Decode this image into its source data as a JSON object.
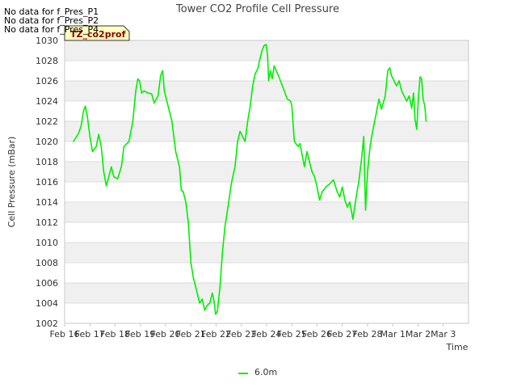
{
  "no_data_messages": [
    "No data for f_Pres_P1",
    "No data for f_Pres_P2",
    "No data for f_Pres_P4"
  ],
  "station_badge": "TZ_co2prof",
  "colors": {
    "series": "#00ee00",
    "band": "#f0f0f0",
    "grid": "#dcdcdc",
    "badge_bg": "#ffffc0",
    "badge_text": "#8b0000"
  },
  "chart_data": {
    "type": "line",
    "title": "Tower CO2 Profile Cell Pressure",
    "xlabel": "Time",
    "ylabel": "Cell Pressure (mBar)",
    "x_unit": "days since Feb 16",
    "xlim": [
      0,
      16
    ],
    "ylim": [
      1002,
      1030
    ],
    "xticks": [
      {
        "v": 0,
        "label": "Feb 16"
      },
      {
        "v": 1,
        "label": "Feb 17"
      },
      {
        "v": 2,
        "label": "Feb 18"
      },
      {
        "v": 3,
        "label": "Feb 19"
      },
      {
        "v": 4,
        "label": "Feb 20"
      },
      {
        "v": 5,
        "label": "Feb 21"
      },
      {
        "v": 6,
        "label": "Feb 22"
      },
      {
        "v": 7,
        "label": "Feb 23"
      },
      {
        "v": 8,
        "label": "Feb 24"
      },
      {
        "v": 9,
        "label": "Feb 25"
      },
      {
        "v": 10,
        "label": "Feb 26"
      },
      {
        "v": 11,
        "label": "Feb 27"
      },
      {
        "v": 12,
        "label": "Feb 28"
      },
      {
        "v": 13,
        "label": "Mar 1"
      },
      {
        "v": 14,
        "label": "Mar 2"
      },
      {
        "v": 15,
        "label": "Mar 3"
      }
    ],
    "yticks": [
      1002,
      1004,
      1006,
      1008,
      1010,
      1012,
      1014,
      1016,
      1018,
      1020,
      1022,
      1024,
      1026,
      1028,
      1030
    ],
    "series": [
      {
        "name": "6.0m",
        "points": [
          [
            0.35,
            1020.0
          ],
          [
            0.55,
            1020.8
          ],
          [
            0.65,
            1021.5
          ],
          [
            0.75,
            1023.0
          ],
          [
            0.82,
            1023.5
          ],
          [
            0.9,
            1022.5
          ],
          [
            1.0,
            1020.5
          ],
          [
            1.1,
            1019.0
          ],
          [
            1.25,
            1019.5
          ],
          [
            1.35,
            1020.7
          ],
          [
            1.45,
            1019.5
          ],
          [
            1.55,
            1017.0
          ],
          [
            1.65,
            1015.6
          ],
          [
            1.75,
            1016.5
          ],
          [
            1.85,
            1017.5
          ],
          [
            1.95,
            1016.5
          ],
          [
            2.1,
            1016.3
          ],
          [
            2.25,
            1017.5
          ],
          [
            2.35,
            1019.5
          ],
          [
            2.55,
            1020.0
          ],
          [
            2.7,
            1022.0
          ],
          [
            2.82,
            1025.0
          ],
          [
            2.9,
            1026.2
          ],
          [
            2.97,
            1026.0
          ],
          [
            3.05,
            1024.8
          ],
          [
            3.15,
            1025.0
          ],
          [
            3.3,
            1024.8
          ],
          [
            3.45,
            1024.7
          ],
          [
            3.55,
            1023.8
          ],
          [
            3.7,
            1024.5
          ],
          [
            3.8,
            1026.5
          ],
          [
            3.88,
            1027.0
          ],
          [
            3.95,
            1025.0
          ],
          [
            4.1,
            1023.5
          ],
          [
            4.25,
            1022.0
          ],
          [
            4.4,
            1019.0
          ],
          [
            4.55,
            1017.5
          ],
          [
            4.62,
            1015.2
          ],
          [
            4.7,
            1015.0
          ],
          [
            4.8,
            1014.0
          ],
          [
            4.9,
            1012.0
          ],
          [
            5.0,
            1008.0
          ],
          [
            5.1,
            1006.5
          ],
          [
            5.25,
            1005.0
          ],
          [
            5.35,
            1004.0
          ],
          [
            5.45,
            1004.4
          ],
          [
            5.55,
            1003.3
          ],
          [
            5.65,
            1003.8
          ],
          [
            5.75,
            1004.0
          ],
          [
            5.85,
            1005.0
          ],
          [
            5.92,
            1004.2
          ],
          [
            5.98,
            1002.9
          ],
          [
            6.05,
            1003.2
          ],
          [
            6.15,
            1005.5
          ],
          [
            6.25,
            1009.0
          ],
          [
            6.35,
            1011.5
          ],
          [
            6.5,
            1014.0
          ],
          [
            6.6,
            1015.8
          ],
          [
            6.75,
            1017.5
          ],
          [
            6.85,
            1020.0
          ],
          [
            6.95,
            1021.0
          ],
          [
            7.05,
            1020.5
          ],
          [
            7.15,
            1020.0
          ],
          [
            7.25,
            1022.0
          ],
          [
            7.35,
            1023.5
          ],
          [
            7.45,
            1025.5
          ],
          [
            7.55,
            1026.7
          ],
          [
            7.65,
            1027.2
          ],
          [
            7.72,
            1028.0
          ],
          [
            7.82,
            1029.0
          ],
          [
            7.9,
            1029.5
          ],
          [
            7.98,
            1029.6
          ],
          [
            8.04,
            1028.5
          ],
          [
            8.08,
            1026.0
          ],
          [
            8.15,
            1027.0
          ],
          [
            8.22,
            1026.2
          ],
          [
            8.3,
            1027.5
          ],
          [
            8.42,
            1026.8
          ],
          [
            8.55,
            1026.0
          ],
          [
            8.7,
            1025.0
          ],
          [
            8.82,
            1024.2
          ],
          [
            8.95,
            1024.0
          ],
          [
            9.0,
            1023.5
          ],
          [
            9.1,
            1020.0
          ],
          [
            9.25,
            1019.5
          ],
          [
            9.32,
            1019.8
          ],
          [
            9.42,
            1018.5
          ],
          [
            9.5,
            1017.5
          ],
          [
            9.6,
            1019.0
          ],
          [
            9.7,
            1018.0
          ],
          [
            9.8,
            1017.0
          ],
          [
            9.9,
            1016.5
          ],
          [
            10.0,
            1015.5
          ],
          [
            10.1,
            1014.2
          ],
          [
            10.2,
            1015.0
          ],
          [
            10.35,
            1015.5
          ],
          [
            10.5,
            1015.8
          ],
          [
            10.65,
            1016.2
          ],
          [
            10.8,
            1015.0
          ],
          [
            10.9,
            1014.5
          ],
          [
            11.0,
            1015.5
          ],
          [
            11.1,
            1014.2
          ],
          [
            11.2,
            1013.5
          ],
          [
            11.3,
            1014.0
          ],
          [
            11.42,
            1012.3
          ],
          [
            11.55,
            1014.5
          ],
          [
            11.65,
            1016.0
          ],
          [
            11.75,
            1018.0
          ],
          [
            11.85,
            1020.5
          ],
          [
            11.92,
            1013.2
          ],
          [
            12.0,
            1017.0
          ],
          [
            12.1,
            1019.5
          ],
          [
            12.2,
            1021.0
          ],
          [
            12.32,
            1022.5
          ],
          [
            12.45,
            1024.2
          ],
          [
            12.55,
            1023.2
          ],
          [
            12.7,
            1024.5
          ],
          [
            12.8,
            1027.0
          ],
          [
            12.88,
            1027.3
          ],
          [
            12.95,
            1026.5
          ],
          [
            13.05,
            1026.0
          ],
          [
            13.15,
            1025.5
          ],
          [
            13.25,
            1026.0
          ],
          [
            13.35,
            1025.0
          ],
          [
            13.45,
            1024.5
          ],
          [
            13.55,
            1024.0
          ],
          [
            13.65,
            1024.5
          ],
          [
            13.75,
            1023.3
          ],
          [
            13.82,
            1024.8
          ],
          [
            13.88,
            1022.2
          ],
          [
            13.95,
            1021.2
          ],
          [
            14.02,
            1024.5
          ],
          [
            14.08,
            1026.4
          ],
          [
            14.14,
            1026.2
          ],
          [
            14.2,
            1024.2
          ],
          [
            14.27,
            1023.5
          ],
          [
            14.32,
            1022.0
          ]
        ]
      }
    ],
    "legend": {
      "placement": "bottom-center",
      "label": "6.0m"
    }
  }
}
